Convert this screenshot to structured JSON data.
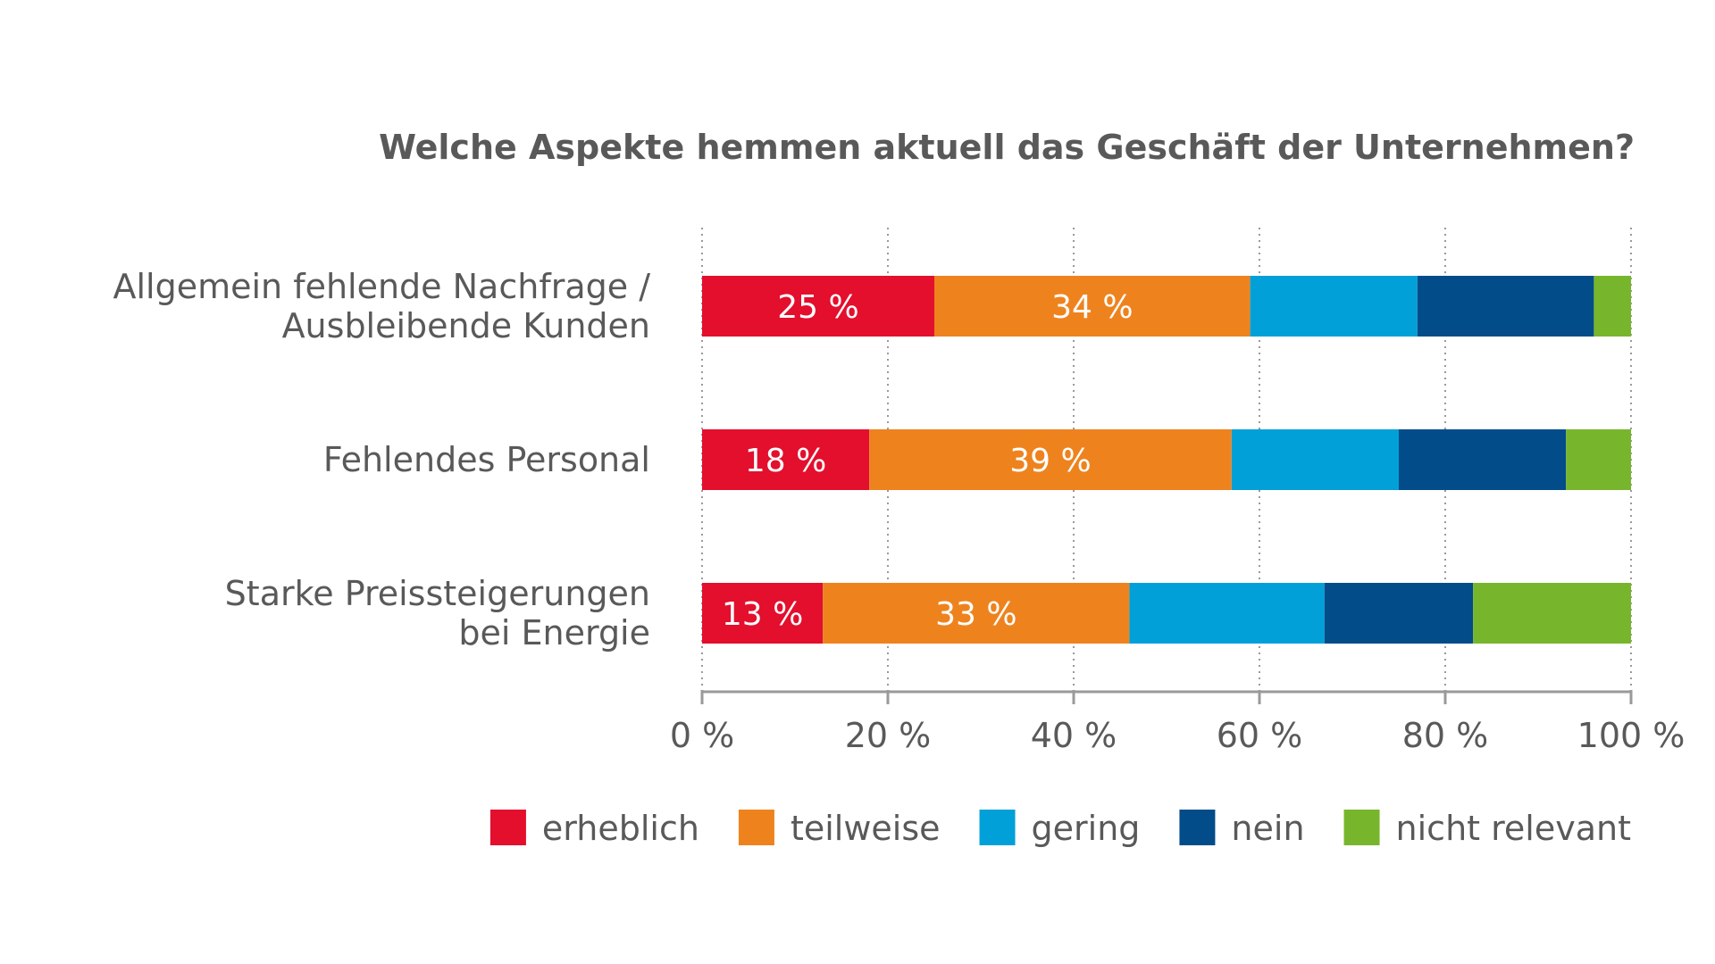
{
  "chart_data": {
    "type": "bar",
    "orientation": "horizontal",
    "stacked": true,
    "title": "Welche Aspekte hemmen aktuell das Geschäft der Unternehmen?",
    "categories": [
      [
        "Allgemein fehlende Nachfrage /",
        "Ausbleibende Kunden"
      ],
      [
        "Fehlendes Personal"
      ],
      [
        "Starke Preissteigerungen",
        "bei Energie"
      ]
    ],
    "series": [
      {
        "name": "erheblich",
        "color": "#e30f2d",
        "values": [
          25,
          18,
          13
        ],
        "show_labels": true
      },
      {
        "name": "teilweise",
        "color": "#ee831e",
        "values": [
          34,
          39,
          33
        ],
        "show_labels": true
      },
      {
        "name": "gering",
        "color": "#02a0d8",
        "values": [
          18,
          18,
          21
        ],
        "show_labels": false
      },
      {
        "name": "nein",
        "color": "#024c8a",
        "values": [
          19,
          18,
          16
        ],
        "show_labels": false
      },
      {
        "name": "nicht relevant",
        "color": "#77b62c",
        "values": [
          4,
          7,
          17
        ],
        "show_labels": false
      }
    ],
    "value_label_suffix": " %",
    "xlim": [
      0,
      100
    ],
    "xticks": [
      0,
      20,
      40,
      60,
      80,
      100
    ],
    "xtick_labels": [
      "0 %",
      "20 %",
      "40 %",
      "60 %",
      "80 %",
      "100 %"
    ],
    "grid": true,
    "legend_position": "bottom-right"
  }
}
